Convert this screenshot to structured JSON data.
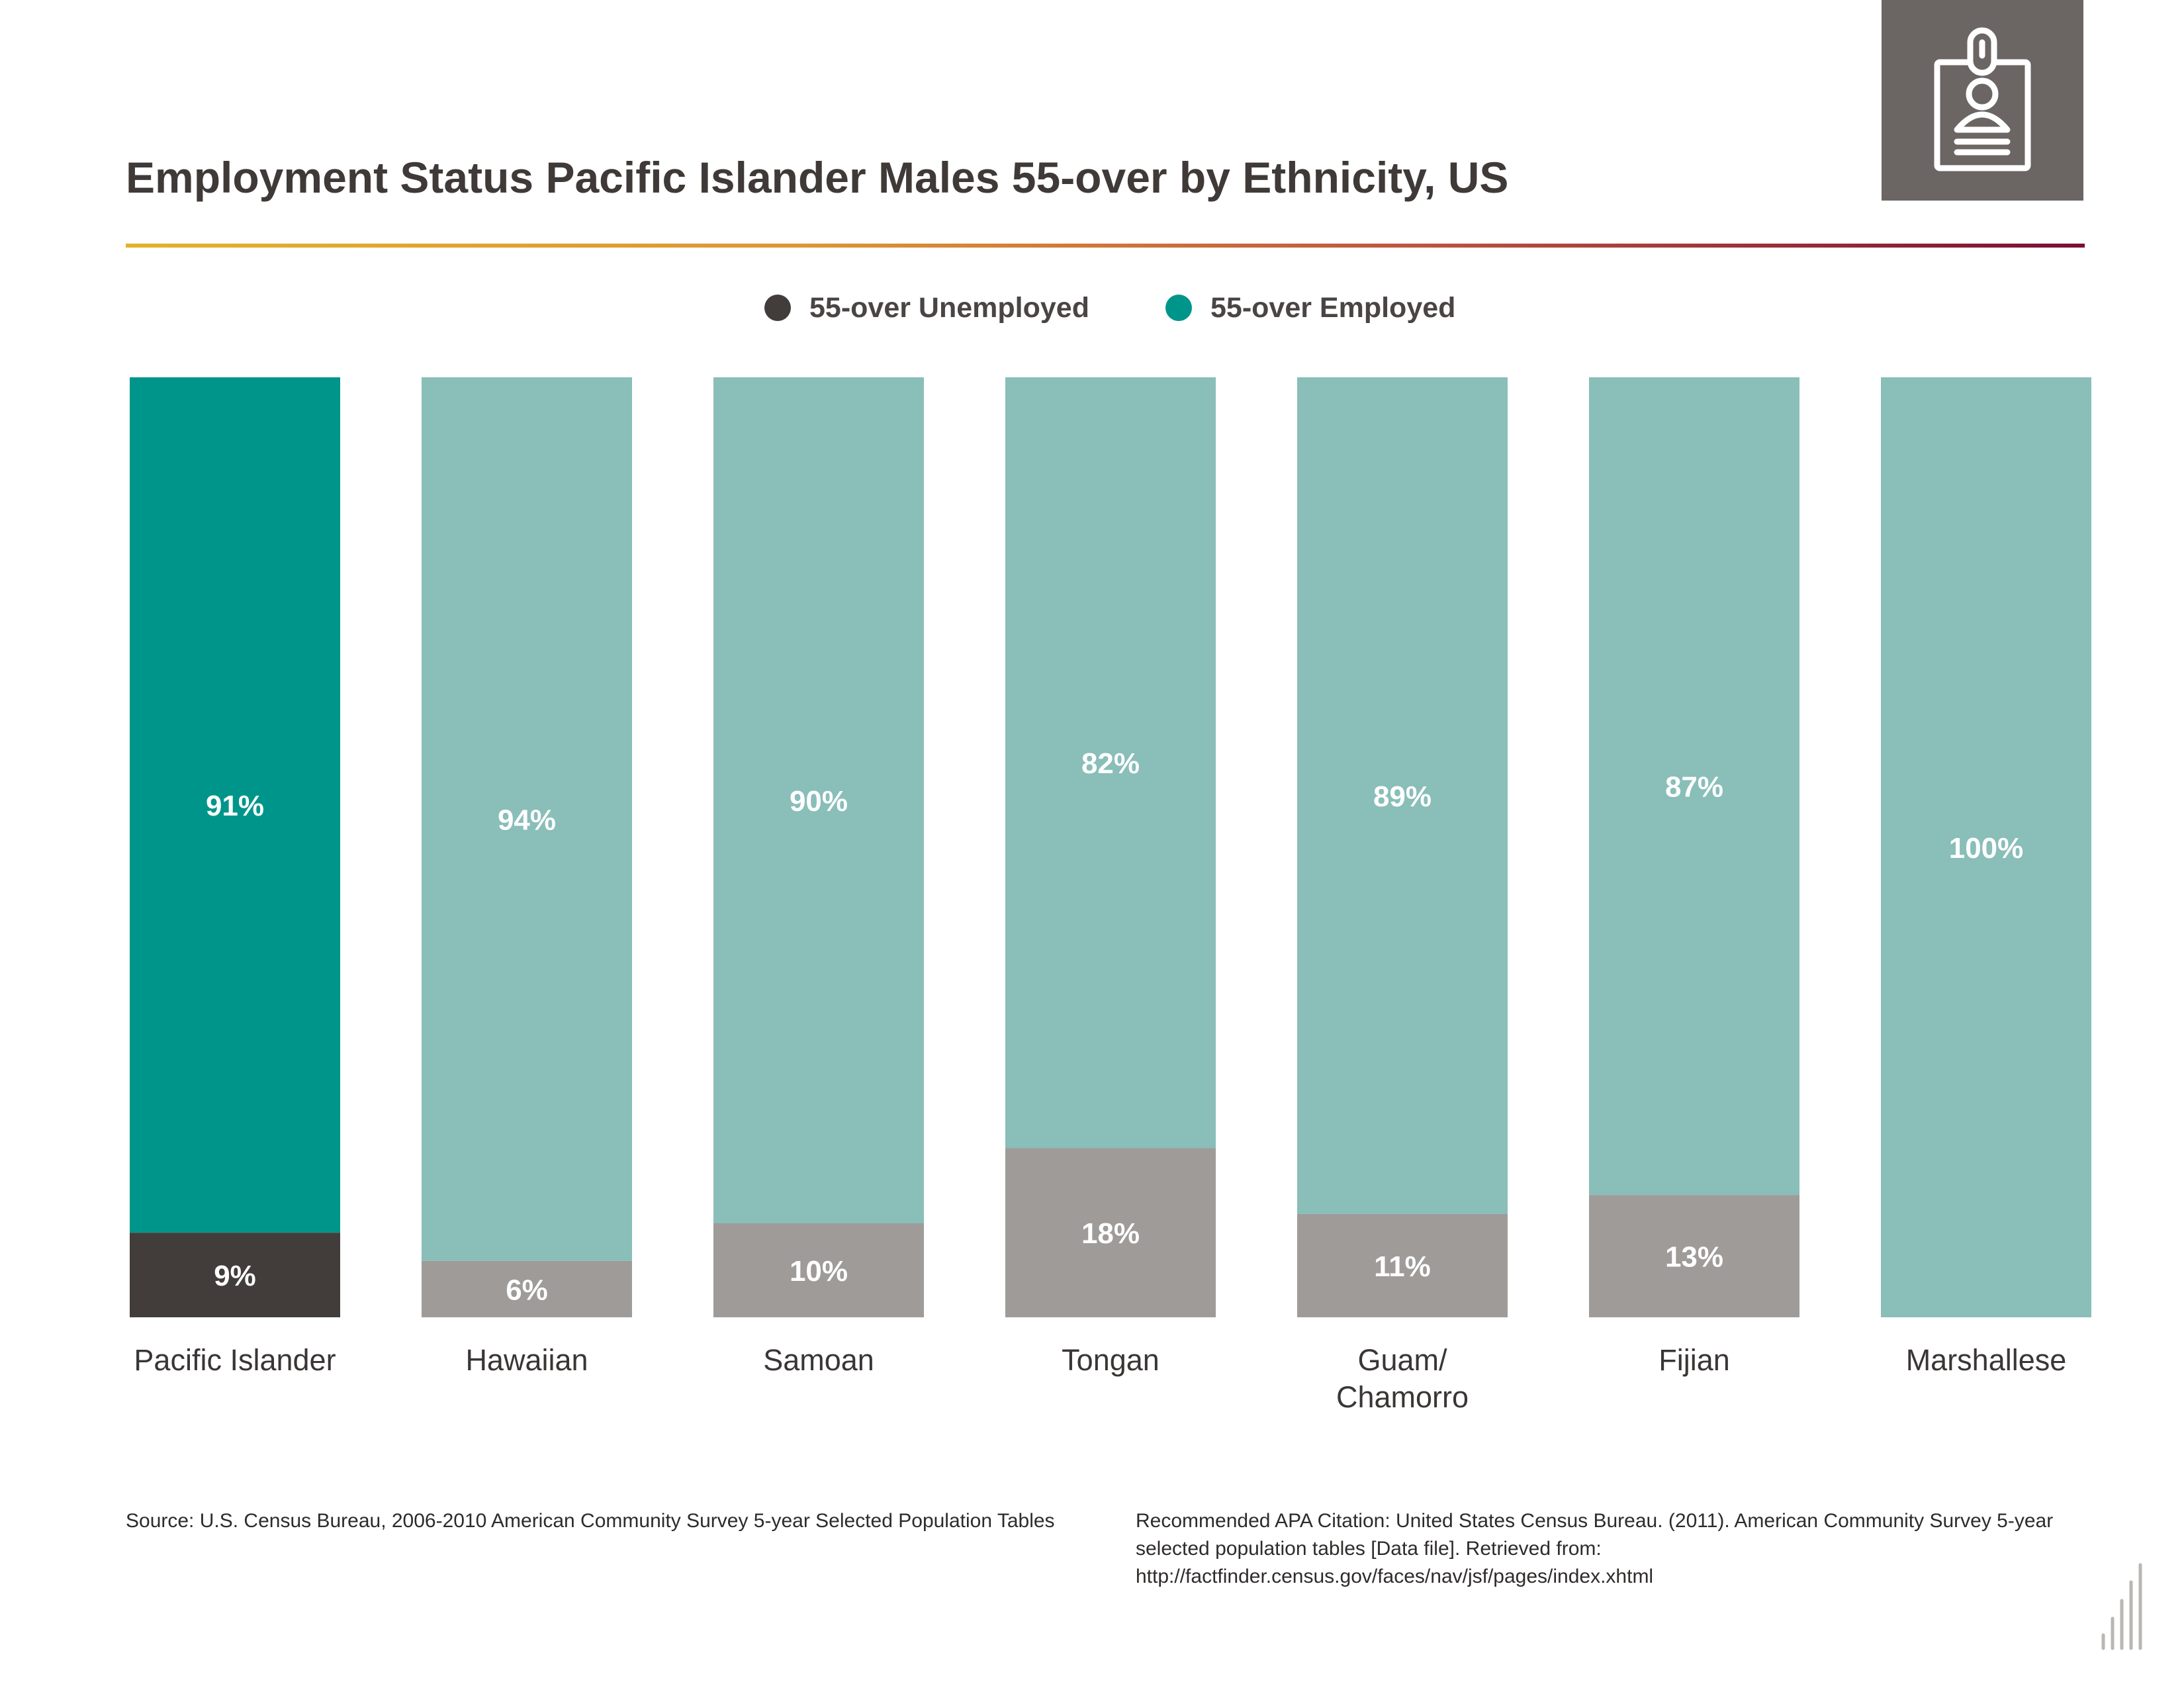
{
  "title": "Employment Status Pacific Islander Males 55-over by Ethnicity, US",
  "badge_icon": "id-badge-icon",
  "legend": [
    {
      "label": "55-over Unemployed",
      "color": "#423d3b"
    },
    {
      "label": "55-over Employed",
      "color": "#00958a"
    }
  ],
  "colors": {
    "employed_highlight": "#00958a",
    "unemployed_highlight": "#423d3b",
    "employed": "#89beb9",
    "unemployed": "#9e9b99",
    "label_text": "#ffffff",
    "category_text": "#3a3635"
  },
  "chart_data": {
    "type": "bar",
    "stacked": true,
    "categories": [
      "Pacific Islander",
      "Hawaiian",
      "Samoan",
      "Tongan",
      "Guam/ Chamorro",
      "Fijian",
      "Marshallese"
    ],
    "category_lines": [
      [
        "Pacific Islander"
      ],
      [
        "Hawaiian"
      ],
      [
        "Samoan"
      ],
      [
        "Tongan"
      ],
      [
        "Guam/",
        "Chamorro"
      ],
      [
        "Fijian"
      ],
      [
        "Marshallese"
      ]
    ],
    "series": [
      {
        "name": "55-over Unemployed",
        "values": [
          9,
          6,
          10,
          18,
          11,
          13,
          0
        ],
        "labels": [
          "9%",
          "6%",
          "10%",
          "18%",
          "11%",
          "13%",
          ""
        ]
      },
      {
        "name": "55-over Employed",
        "values": [
          91,
          94,
          90,
          82,
          89,
          87,
          100
        ],
        "labels": [
          "91%",
          "94%",
          "90%",
          "82%",
          "89%",
          "87%",
          "100%"
        ]
      }
    ],
    "ylim": [
      0,
      100
    ],
    "highlight_index": 0,
    "grid": false,
    "legend_position": "top-center"
  },
  "footer": {
    "source": "Source:  U.S. Census Bureau, 2006-2010 American Community Survey 5-year Selected Population Tables",
    "citation": "Recommended APA Citation: United States Census Bureau. (2011). American Community Survey 5-year selected population tables [Data file]. Retrieved from: http://factfinder.census.gov/faces/nav/jsf/pages/index.xhtml"
  }
}
